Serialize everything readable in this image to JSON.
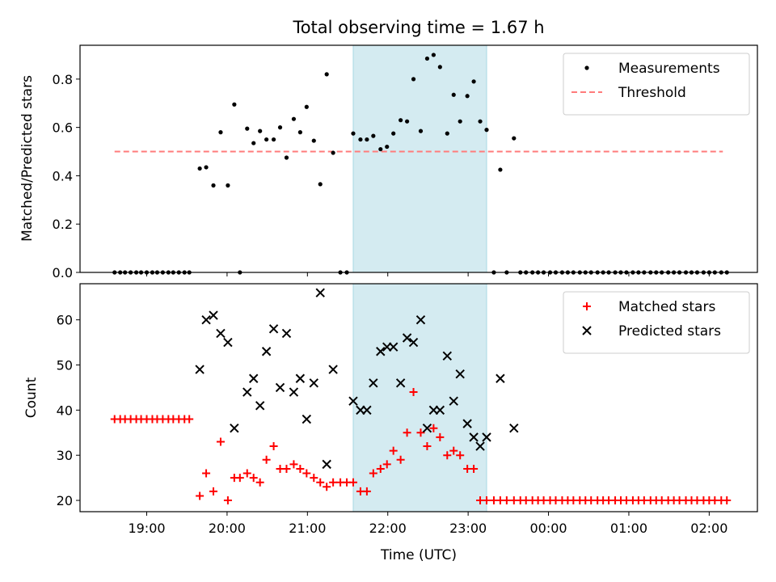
{
  "figure": {
    "title": "Total observing time = 1.67 h",
    "xlabel": "Time (UTC)",
    "time_ticks": [
      "19:00",
      "20:00",
      "21:00",
      "22:00",
      "23:00",
      "00:00",
      "01:00",
      "02:00"
    ],
    "x_range_hours": [
      18.17,
      26.6
    ],
    "highlight_span_hours": [
      21.57,
      23.23
    ],
    "highlight_color": "#d4ebf1"
  },
  "chart_data": [
    {
      "type": "scatter",
      "ylabel": "Matched/Predicted stars",
      "ylim": [
        0,
        0.94
      ],
      "yticks": [
        "0.0",
        "0.2",
        "0.4",
        "0.6",
        "0.8"
      ],
      "legend_position": "upper right",
      "threshold": {
        "name": "Threshold",
        "value": 0.5,
        "x_range_hours": [
          18.6,
          26.17
        ],
        "color": "#ff7b7b"
      },
      "series": [
        {
          "name": "Measurements",
          "color": "#000000",
          "points": [
            [
              18.6,
              0
            ],
            [
              18.67,
              0
            ],
            [
              18.73,
              0
            ],
            [
              18.8,
              0
            ],
            [
              18.87,
              0
            ],
            [
              18.93,
              0
            ],
            [
              19.0,
              0
            ],
            [
              19.07,
              0
            ],
            [
              19.13,
              0
            ],
            [
              19.2,
              0
            ],
            [
              19.27,
              0
            ],
            [
              19.33,
              0
            ],
            [
              19.4,
              0
            ],
            [
              19.47,
              0
            ],
            [
              19.53,
              0
            ],
            [
              19.66,
              0.43
            ],
            [
              19.74,
              0.435
            ],
            [
              19.83,
              0.36
            ],
            [
              19.92,
              0.58
            ],
            [
              20.01,
              0.36
            ],
            [
              20.09,
              0.695
            ],
            [
              20.16,
              0
            ],
            [
              20.25,
              0.595
            ],
            [
              20.33,
              0.535
            ],
            [
              20.41,
              0.585
            ],
            [
              20.49,
              0.55
            ],
            [
              20.58,
              0.55
            ],
            [
              20.66,
              0.6
            ],
            [
              20.74,
              0.475
            ],
            [
              20.83,
              0.635
            ],
            [
              20.91,
              0.58
            ],
            [
              20.99,
              0.685
            ],
            [
              21.08,
              0.545
            ],
            [
              21.16,
              0.365
            ],
            [
              21.24,
              0.82
            ],
            [
              21.32,
              0.495
            ],
            [
              21.41,
              0
            ],
            [
              21.49,
              0
            ],
            [
              21.57,
              0.575
            ],
            [
              21.66,
              0.55
            ],
            [
              21.74,
              0.55
            ],
            [
              21.82,
              0.565
            ],
            [
              21.91,
              0.51
            ],
            [
              21.99,
              0.52
            ],
            [
              22.07,
              0.575
            ],
            [
              22.16,
              0.63
            ],
            [
              22.24,
              0.625
            ],
            [
              22.32,
              0.8
            ],
            [
              22.41,
              0.585
            ],
            [
              22.49,
              0.885
            ],
            [
              22.57,
              0.9
            ],
            [
              22.65,
              0.85
            ],
            [
              22.74,
              0.575
            ],
            [
              22.82,
              0.735
            ],
            [
              22.9,
              0.625
            ],
            [
              22.99,
              0.73
            ],
            [
              23.07,
              0.79
            ],
            [
              23.15,
              0.625
            ],
            [
              23.23,
              0.59
            ],
            [
              23.32,
              0
            ],
            [
              23.4,
              0.425
            ],
            [
              23.48,
              0
            ],
            [
              23.57,
              0.555
            ],
            [
              23.65,
              0
            ],
            [
              23.72,
              0
            ],
            [
              23.8,
              0
            ],
            [
              23.87,
              0
            ],
            [
              23.94,
              0
            ],
            [
              24.02,
              0
            ],
            [
              24.09,
              0
            ],
            [
              24.17,
              0
            ],
            [
              24.24,
              0
            ],
            [
              24.31,
              0
            ],
            [
              24.39,
              0
            ],
            [
              24.46,
              0
            ],
            [
              24.53,
              0
            ],
            [
              24.61,
              0
            ],
            [
              24.68,
              0
            ],
            [
              24.75,
              0
            ],
            [
              24.83,
              0
            ],
            [
              24.9,
              0
            ],
            [
              24.97,
              0
            ],
            [
              25.05,
              0
            ],
            [
              25.12,
              0
            ],
            [
              25.19,
              0
            ],
            [
              25.27,
              0
            ],
            [
              25.34,
              0
            ],
            [
              25.41,
              0
            ],
            [
              25.49,
              0
            ],
            [
              25.56,
              0
            ],
            [
              25.63,
              0
            ],
            [
              25.71,
              0
            ],
            [
              25.78,
              0
            ],
            [
              25.85,
              0
            ],
            [
              25.93,
              0
            ],
            [
              26.0,
              0
            ],
            [
              26.07,
              0
            ],
            [
              26.15,
              0
            ],
            [
              26.22,
              0
            ]
          ]
        }
      ]
    },
    {
      "type": "scatter",
      "ylabel": "Count",
      "ylim": [
        17.5,
        68
      ],
      "yticks": [
        "20",
        "30",
        "40",
        "50",
        "60"
      ],
      "legend_position": "upper right",
      "series": [
        {
          "name": "Matched stars",
          "color": "#ff0000",
          "marker": "plus",
          "points": [
            [
              18.6,
              38
            ],
            [
              18.67,
              38
            ],
            [
              18.73,
              38
            ],
            [
              18.8,
              38
            ],
            [
              18.87,
              38
            ],
            [
              18.93,
              38
            ],
            [
              19.0,
              38
            ],
            [
              19.07,
              38
            ],
            [
              19.13,
              38
            ],
            [
              19.2,
              38
            ],
            [
              19.27,
              38
            ],
            [
              19.33,
              38
            ],
            [
              19.4,
              38
            ],
            [
              19.47,
              38
            ],
            [
              19.53,
              38
            ],
            [
              19.66,
              21
            ],
            [
              19.74,
              26
            ],
            [
              19.83,
              22
            ],
            [
              19.92,
              33
            ],
            [
              20.01,
              20
            ],
            [
              20.09,
              25
            ],
            [
              20.16,
              25
            ],
            [
              20.25,
              26
            ],
            [
              20.33,
              25
            ],
            [
              20.41,
              24
            ],
            [
              20.49,
              29
            ],
            [
              20.58,
              32
            ],
            [
              20.66,
              27
            ],
            [
              20.74,
              27
            ],
            [
              20.83,
              28
            ],
            [
              20.91,
              27
            ],
            [
              20.99,
              26
            ],
            [
              21.08,
              25
            ],
            [
              21.16,
              24
            ],
            [
              21.24,
              23
            ],
            [
              21.32,
              24
            ],
            [
              21.41,
              24
            ],
            [
              21.49,
              24
            ],
            [
              21.57,
              24
            ],
            [
              21.66,
              22
            ],
            [
              21.74,
              22
            ],
            [
              21.82,
              26
            ],
            [
              21.91,
              27
            ],
            [
              21.99,
              28
            ],
            [
              22.07,
              31
            ],
            [
              22.16,
              29
            ],
            [
              22.24,
              35
            ],
            [
              22.32,
              44
            ],
            [
              22.41,
              35
            ],
            [
              22.49,
              32
            ],
            [
              22.57,
              36
            ],
            [
              22.65,
              34
            ],
            [
              22.74,
              30
            ],
            [
              22.82,
              31
            ],
            [
              22.9,
              30
            ],
            [
              22.99,
              27
            ],
            [
              23.07,
              27
            ],
            [
              23.15,
              20
            ],
            [
              23.23,
              20
            ],
            [
              23.32,
              20
            ],
            [
              23.4,
              20
            ],
            [
              23.48,
              20
            ],
            [
              23.57,
              20
            ],
            [
              23.65,
              20
            ],
            [
              23.72,
              20
            ],
            [
              23.8,
              20
            ],
            [
              23.87,
              20
            ],
            [
              23.94,
              20
            ],
            [
              24.02,
              20
            ],
            [
              24.09,
              20
            ],
            [
              24.17,
              20
            ],
            [
              24.24,
              20
            ],
            [
              24.31,
              20
            ],
            [
              24.39,
              20
            ],
            [
              24.46,
              20
            ],
            [
              24.53,
              20
            ],
            [
              24.61,
              20
            ],
            [
              24.68,
              20
            ],
            [
              24.75,
              20
            ],
            [
              24.83,
              20
            ],
            [
              24.9,
              20
            ],
            [
              24.97,
              20
            ],
            [
              25.05,
              20
            ],
            [
              25.12,
              20
            ],
            [
              25.19,
              20
            ],
            [
              25.27,
              20
            ],
            [
              25.34,
              20
            ],
            [
              25.41,
              20
            ],
            [
              25.49,
              20
            ],
            [
              25.56,
              20
            ],
            [
              25.63,
              20
            ],
            [
              25.71,
              20
            ],
            [
              25.78,
              20
            ],
            [
              25.85,
              20
            ],
            [
              25.93,
              20
            ],
            [
              26.0,
              20
            ],
            [
              26.07,
              20
            ],
            [
              26.15,
              20
            ],
            [
              26.22,
              20
            ]
          ]
        },
        {
          "name": "Predicted stars",
          "color": "#000000",
          "marker": "x",
          "points": [
            [
              19.66,
              49
            ],
            [
              19.74,
              60
            ],
            [
              19.83,
              61
            ],
            [
              19.92,
              57
            ],
            [
              20.01,
              55
            ],
            [
              20.09,
              36
            ],
            [
              20.25,
              44
            ],
            [
              20.33,
              47
            ],
            [
              20.41,
              41
            ],
            [
              20.49,
              53
            ],
            [
              20.58,
              58
            ],
            [
              20.66,
              45
            ],
            [
              20.74,
              57
            ],
            [
              20.83,
              44
            ],
            [
              20.91,
              47
            ],
            [
              20.99,
              38
            ],
            [
              21.08,
              46
            ],
            [
              21.16,
              66
            ],
            [
              21.24,
              28
            ],
            [
              21.32,
              49
            ],
            [
              21.57,
              42
            ],
            [
              21.66,
              40
            ],
            [
              21.74,
              40
            ],
            [
              21.82,
              46
            ],
            [
              21.91,
              53
            ],
            [
              21.99,
              54
            ],
            [
              22.07,
              54
            ],
            [
              22.16,
              46
            ],
            [
              22.24,
              56
            ],
            [
              22.32,
              55
            ],
            [
              22.41,
              60
            ],
            [
              22.49,
              36
            ],
            [
              22.57,
              40
            ],
            [
              22.65,
              40
            ],
            [
              22.74,
              52
            ],
            [
              22.82,
              42
            ],
            [
              22.9,
              48
            ],
            [
              22.99,
              37
            ],
            [
              23.07,
              34
            ],
            [
              23.15,
              32
            ],
            [
              23.23,
              34
            ],
            [
              23.4,
              47
            ],
            [
              23.57,
              36
            ]
          ]
        }
      ]
    }
  ]
}
